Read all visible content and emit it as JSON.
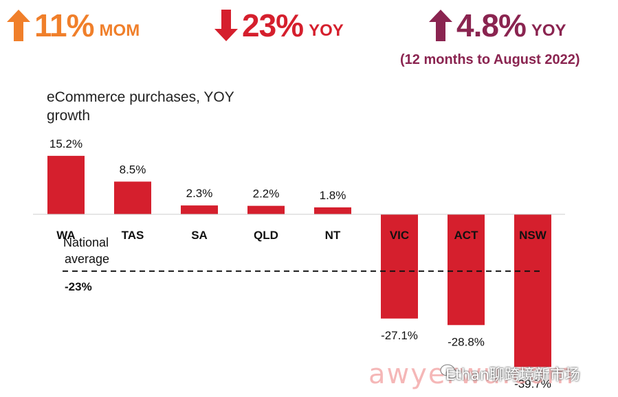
{
  "kpis": [
    {
      "direction": "up",
      "value": "11%",
      "unit": "MOM",
      "color": "#f07f2a"
    },
    {
      "direction": "down",
      "value": "23%",
      "unit": "YOY",
      "color": "#d51f2d"
    },
    {
      "direction": "up",
      "value": "4.8%",
      "unit": "YOY",
      "color": "#8a2450",
      "note": "(12 months to August 2022)"
    }
  ],
  "chart_data": {
    "type": "bar",
    "title": "eCommerce purchases, YOY growth",
    "categories": [
      "WA",
      "TAS",
      "SA",
      "QLD",
      "NT",
      "VIC",
      "ACT",
      "NSW"
    ],
    "values": [
      15.2,
      8.5,
      2.3,
      2.2,
      1.8,
      -27.1,
      -28.8,
      -39.7
    ],
    "value_labels": [
      "15.2%",
      "8.5%",
      "2.3%",
      "2.2%",
      "1.8%",
      "-27.1%",
      "-28.8%",
      "-39.7%"
    ],
    "bar_color": "#d51f2d",
    "reference_line": {
      "label": "National average",
      "value": -23,
      "value_label": "-23%"
    }
  },
  "watermark": {
    "text": "awyerwu.com",
    "overlay": "Ethan聊跨境新市场"
  }
}
